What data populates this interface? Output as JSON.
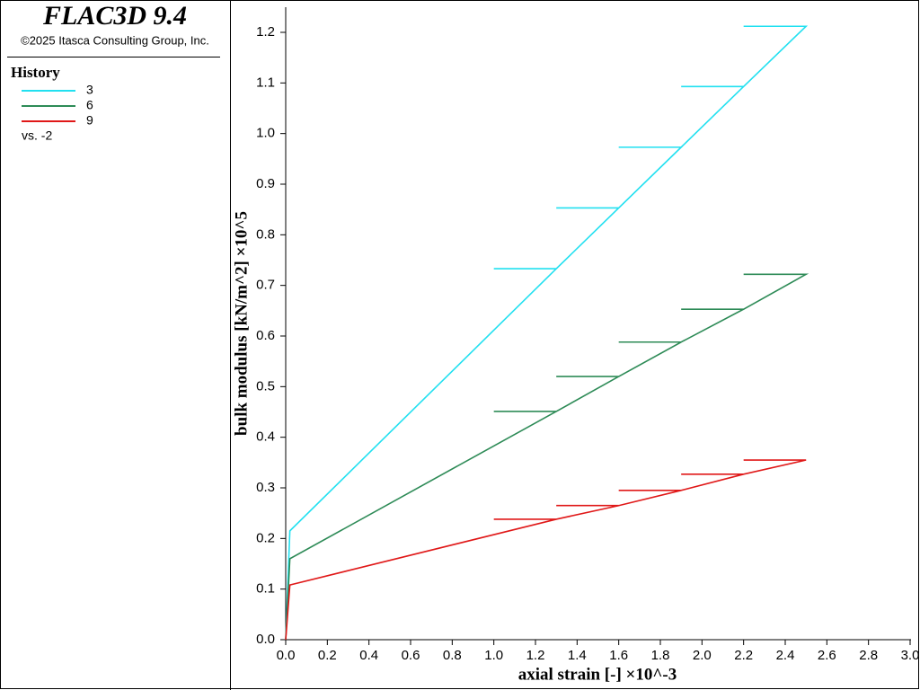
{
  "chart_data": {
    "type": "line",
    "title": "FLAC3D 9.4",
    "subtitle": "©2025 Itasca Consulting Group, Inc.",
    "legend_title": "History",
    "legend_note": "vs. -2",
    "x_label": "axial strain [-] ×10^-3",
    "y_label": "bulk modulus [kN/m^2] ×10^5",
    "x": [
      0,
      0.02,
      1.3,
      1.0,
      1.3,
      1.6,
      1.3,
      1.6,
      1.9,
      1.6,
      1.9,
      2.2,
      1.9,
      2.2,
      2.5,
      2.2,
      2.5
    ],
    "series": [
      {
        "name": "3",
        "color": "#22e0f0",
        "values": [
          0,
          0.215,
          0.733,
          0.733,
          0.733,
          0.853,
          0.853,
          0.853,
          0.973,
          0.973,
          0.973,
          1.093,
          1.093,
          1.093,
          1.212,
          1.212,
          1.212
        ]
      },
      {
        "name": "6",
        "color": "#2e8b57",
        "values": [
          0,
          0.16,
          0.451,
          0.451,
          0.451,
          0.52,
          0.52,
          0.52,
          0.588,
          0.588,
          0.588,
          0.653,
          0.653,
          0.653,
          0.722,
          0.722,
          0.722
        ]
      },
      {
        "name": "9",
        "color": "#e01818",
        "values": [
          0,
          0.108,
          0.238,
          0.238,
          0.238,
          0.265,
          0.265,
          0.265,
          0.295,
          0.295,
          0.295,
          0.327,
          0.327,
          0.327,
          0.355,
          0.355,
          0.355
        ]
      }
    ],
    "xlim": [
      0,
      3
    ],
    "ylim": [
      0,
      1.2
    ],
    "xticks": [
      {
        "value": 0,
        "label": "0.0"
      },
      0.2,
      0.4,
      0.6,
      0.8,
      {
        "value": 1,
        "label": "1.0"
      },
      1.2,
      1.4,
      1.6,
      1.8,
      {
        "value": 2,
        "label": "2.0"
      },
      2.2,
      2.4,
      2.6,
      2.8,
      {
        "value": 3,
        "label": "3.0"
      }
    ],
    "yticks": [
      {
        "value": 0,
        "label": "0.0"
      },
      0.1,
      0.2,
      0.3,
      0.4,
      0.5,
      0.6,
      0.7,
      0.8,
      0.9,
      {
        "value": 1,
        "label": "1.0"
      },
      1.1,
      1.2
    ]
  }
}
